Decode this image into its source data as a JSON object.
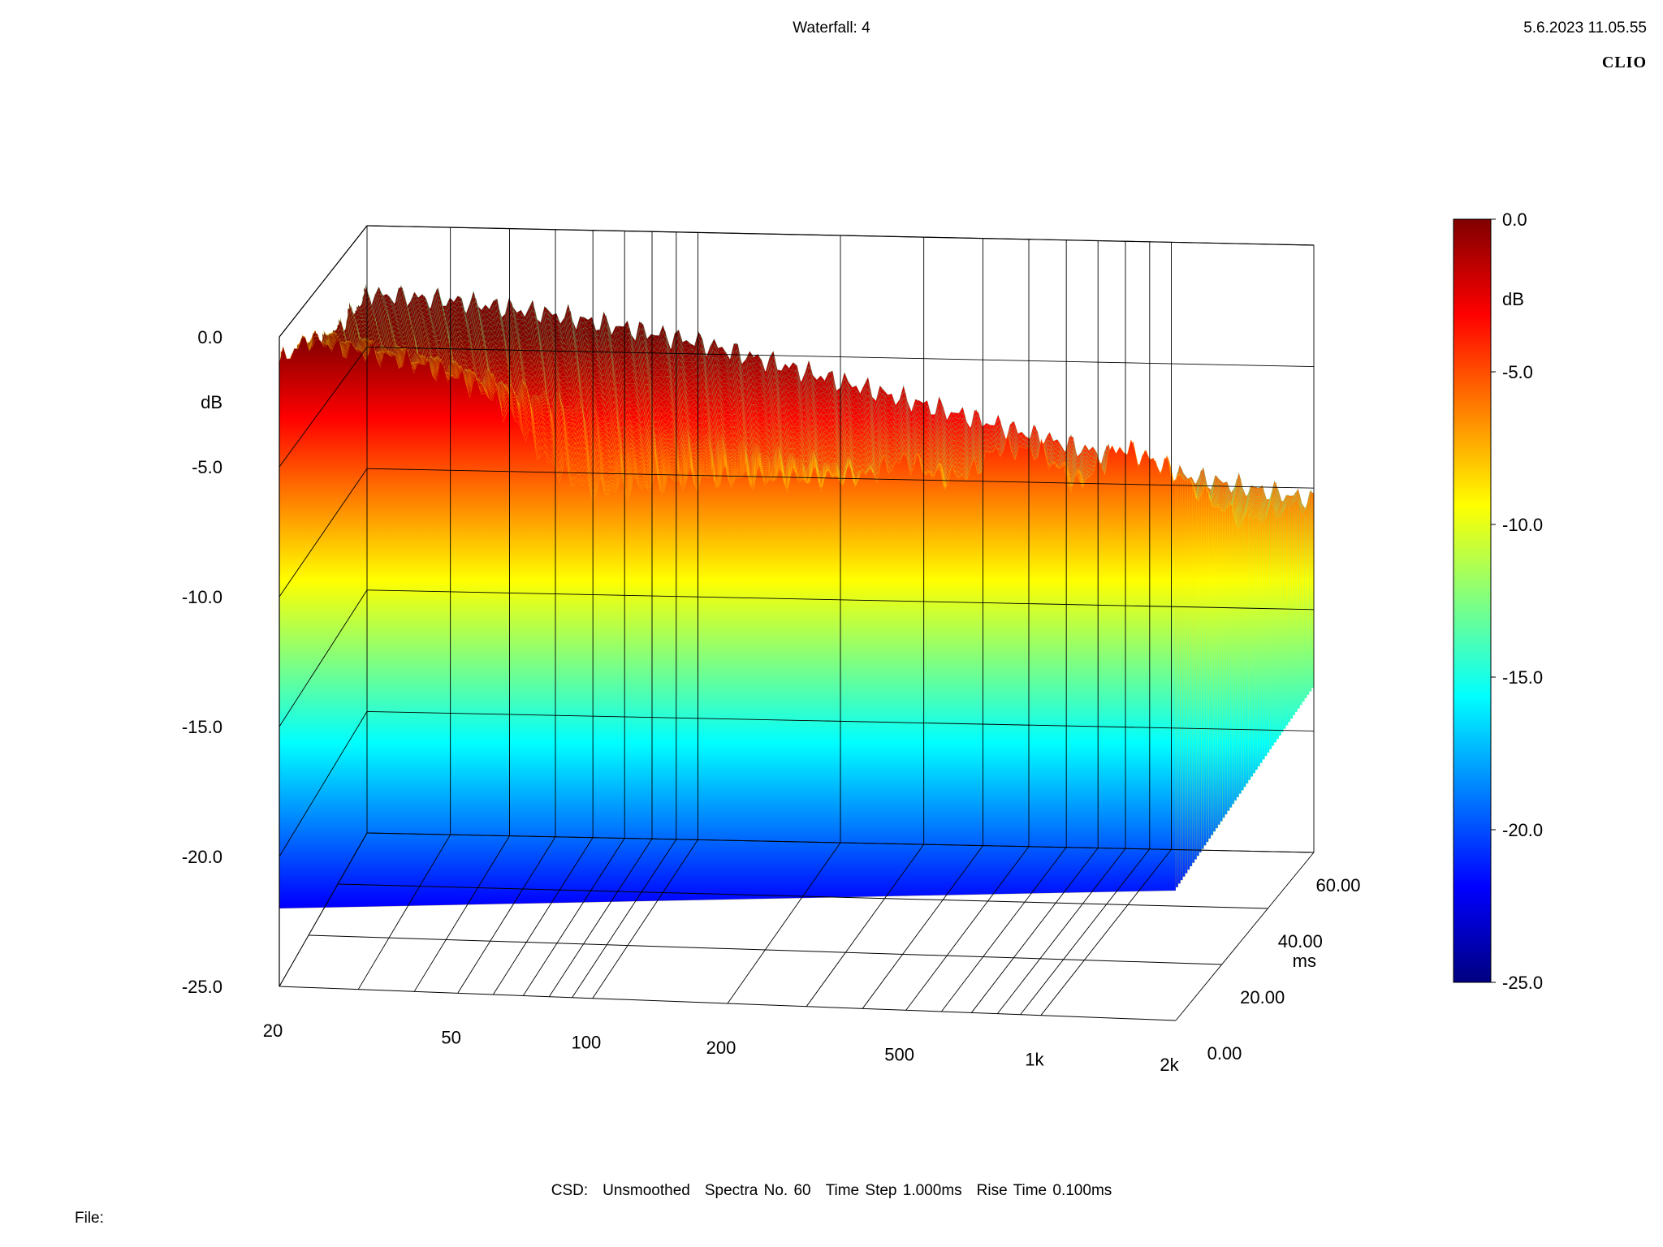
{
  "header": {
    "title": "Waterfall: 4",
    "timestamp": "5.6.2023 11.05.55",
    "brand": "CLIO"
  },
  "footer": {
    "measure": "CSD:",
    "smoothing": "Unsmoothed",
    "spectra": "Spectra No. 60",
    "time_step": "Time Step 1.000ms",
    "rise_time": "Rise Time 0.100ms",
    "file_label": "File:"
  },
  "chart_data": {
    "type": "waterfall",
    "title": "Waterfall: 4",
    "x_axis": {
      "label": "",
      "scale": "log",
      "ticks": [
        "20",
        "50",
        "100",
        "200",
        "500",
        "1k",
        "2k"
      ],
      "tick_values": [
        20,
        50,
        100,
        200,
        500,
        1000,
        2000
      ],
      "range": [
        20,
        2000
      ]
    },
    "y_axis": {
      "label": "dB",
      "ticks": [
        "0.0",
        "-5.0",
        "-10.0",
        "-15.0",
        "-20.0",
        "-25.0"
      ],
      "range": [
        -25,
        0
      ]
    },
    "z_axis": {
      "label": "ms",
      "ticks": [
        "0.00",
        "20.00",
        "40.00",
        "60.00"
      ],
      "range": [
        0,
        60
      ]
    },
    "colorbar": {
      "label": "dB",
      "ticks": [
        "0.0",
        "-5.0",
        "-10.0",
        "-15.0",
        "-20.0",
        "-25.0"
      ],
      "range": [
        -25,
        0
      ],
      "colors": [
        "#800000",
        "#ff0000",
        "#ff8000",
        "#ffff00",
        "#80ff80",
        "#00ffff",
        "#0080ff",
        "#0000ff",
        "#000080"
      ]
    },
    "series": [
      {
        "time_ms": 0,
        "freq": [
          20,
          23,
          27,
          32,
          40,
          50,
          60,
          70,
          80,
          100,
          120,
          150,
          200,
          300,
          400,
          500,
          600,
          700,
          800,
          1000,
          1200,
          1500,
          1800,
          2000
        ],
        "db": [
          -1.0,
          0.0,
          -0.3,
          -0.5,
          -0.8,
          -1.3,
          -2.0,
          -3.2,
          -4.5,
          -5.5,
          -5.3,
          -5.0,
          -4.8,
          -4.7,
          -4.5,
          -3.8,
          -4.5,
          -4.2,
          -3.2,
          -3.3,
          -4.6,
          -3.0,
          -3.5,
          -4.0
        ]
      },
      {
        "time_ms": 30,
        "freq": [
          20,
          30,
          50,
          100,
          200,
          500,
          1000,
          2000
        ],
        "db": [
          -2.5,
          -3.0,
          -4.0,
          -5.5,
          -6.5,
          -7.5,
          -8.0,
          -8.5
        ]
      },
      {
        "time_ms": 60,
        "freq": [
          20,
          30,
          50,
          100,
          200,
          500,
          1000,
          2000
        ],
        "db": [
          -2.8,
          -3.0,
          -3.5,
          -4.5,
          -6.0,
          -8.0,
          -9.5,
          -10.5
        ]
      }
    ]
  }
}
